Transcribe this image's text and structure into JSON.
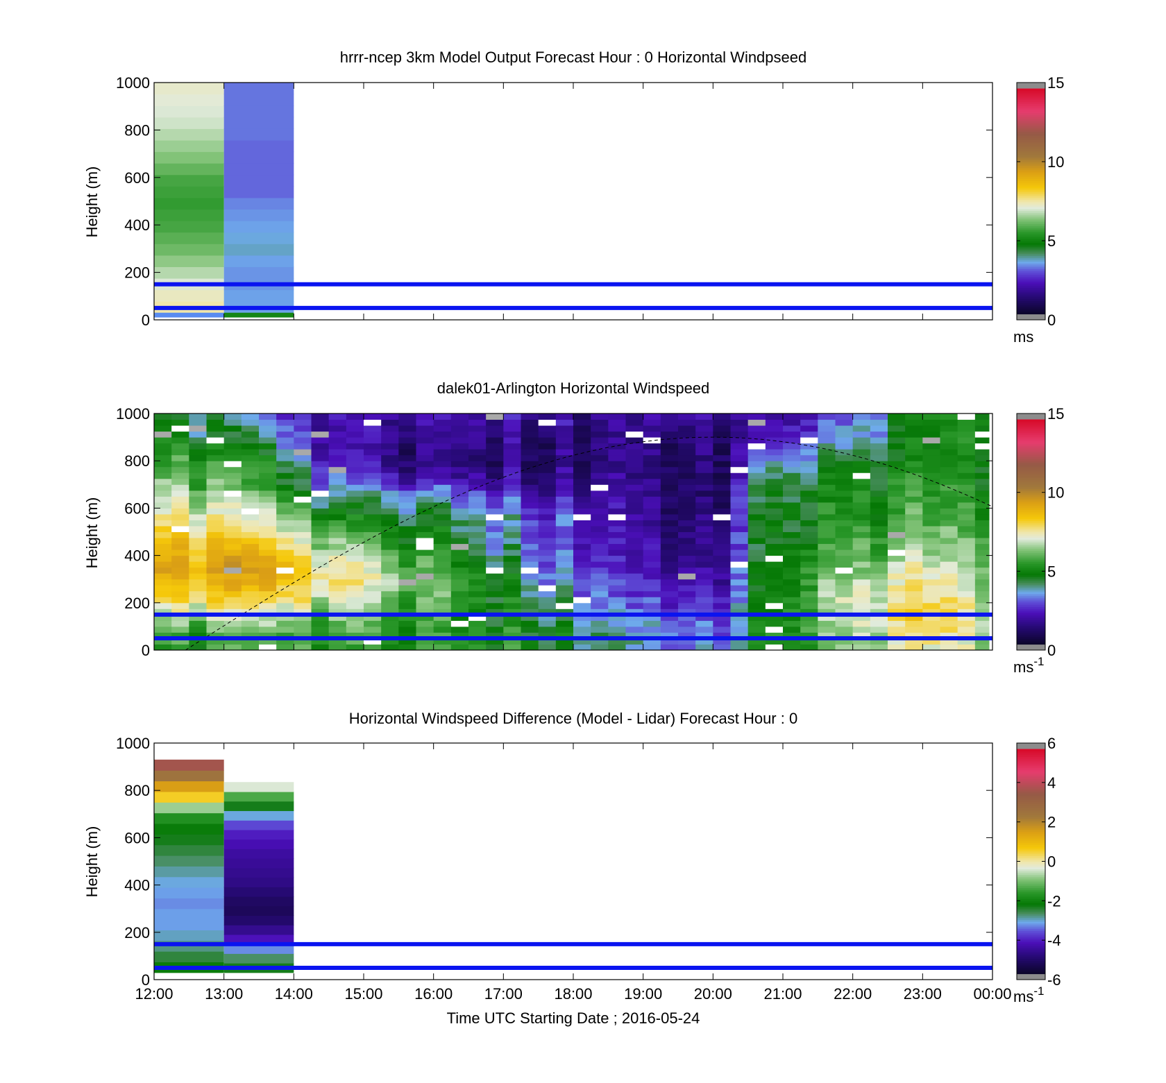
{
  "chart_data": [
    {
      "type": "heatmap",
      "title": "hrrr-ncep 3km Model Output   Forecast Hour : 0 Horizontal Windpseed",
      "ylabel": "Height (m)",
      "ylim": [
        0,
        1000
      ],
      "yticks": [
        "0",
        "200",
        "400",
        "600",
        "800",
        "1000"
      ],
      "xlim": [
        12,
        24
      ],
      "x_ticklabels_shown": false,
      "colorbar": {
        "range": [
          0,
          15
        ],
        "ticks": [
          "0",
          "5",
          "10",
          "15"
        ],
        "unit": "ms",
        "unit_sup": ""
      },
      "reference_heights_m": [
        150,
        50
      ],
      "columns": [
        {
          "x_start": 12,
          "x_end": 13,
          "height_range": [
            30,
            1000
          ],
          "values": [
            7.5,
            7.3,
            7.0,
            6.7,
            6.4,
            6.1,
            5.9,
            5.7,
            5.6,
            5.5,
            5.6,
            5.7,
            6.0,
            6.3,
            6.5,
            6.7,
            6.9,
            7.0,
            7.1,
            7.2
          ]
        },
        {
          "x_start": 13,
          "x_end": 14,
          "height_range": [
            30,
            1000
          ],
          "values": [
            3.4,
            3.4,
            3.3,
            3.3,
            3.4,
            3.6,
            3.5,
            3.4,
            3.3,
            3.2,
            3.0,
            3.0,
            3.0,
            3.0,
            3.0,
            3.1,
            3.1,
            3.1,
            3.1,
            3.1
          ]
        }
      ],
      "low_level_values": [
        5.0,
        5.0
      ]
    },
    {
      "type": "heatmap",
      "title": "dalek01-Arlington  Horizontal Windspeed",
      "ylabel": "Height (m)",
      "ylim": [
        0,
        1000
      ],
      "yticks": [
        "0",
        "200",
        "400",
        "600",
        "800",
        "1000"
      ],
      "xlim": [
        12,
        24
      ],
      "x_ticklabels_shown": false,
      "colorbar": {
        "range": [
          0,
          15
        ],
        "ticks": [
          "0",
          "5",
          "10",
          "15"
        ],
        "unit": "ms",
        "unit_sup": "-1"
      },
      "reference_heights_m": [
        150,
        50
      ],
      "data_end_hour": 23.95,
      "time_step_hours": 0.25,
      "height_levels_m": [
        0,
        1000
      ],
      "height_bin_m": 25,
      "profile_keyframes_ms": {
        "12.0": [
          5.0,
          5.2,
          6.3,
          7.6,
          8.5,
          9.3,
          8.7,
          8.0,
          7.3,
          6.9,
          6.2,
          5.6,
          5.0,
          4.8,
          4.5
        ],
        "13.5": [
          5.6,
          5.6,
          6.6,
          7.9,
          8.6,
          9.0,
          8.4,
          7.6,
          6.8,
          5.8,
          5.2,
          5.0,
          4.2,
          3.4,
          2.8
        ],
        "14.5": [
          5.2,
          5.4,
          6.0,
          6.8,
          7.6,
          7.4,
          6.4,
          5.6,
          4.6,
          3.7,
          2.8,
          2.2,
          1.8,
          1.6,
          1.6
        ],
        "16.0": [
          5.6,
          5.2,
          5.4,
          5.8,
          6.0,
          5.6,
          5.2,
          4.7,
          4.2,
          3.6,
          2.2,
          1.2,
          1.2,
          1.6,
          1.8
        ],
        "17.5": [
          5.0,
          4.8,
          4.6,
          4.4,
          4.0,
          3.4,
          3.1,
          3.0,
          3.0,
          2.2,
          1.6,
          1.2,
          1.4,
          1.6,
          2.0
        ],
        "18.5": [
          3.8,
          3.6,
          3.2,
          2.8,
          2.4,
          2.2,
          2.0,
          1.8,
          1.8,
          1.8,
          1.6,
          1.3,
          1.2,
          1.2,
          1.4
        ],
        "20.0": [
          3.0,
          2.8,
          2.4,
          2.0,
          1.6,
          1.2,
          1.0,
          1.0,
          0.8,
          0.6,
          0.6,
          0.8,
          1.0,
          1.2,
          1.4
        ],
        "20.75": [
          5.0,
          5.2,
          5.0,
          5.0,
          5.0,
          5.2,
          4.8,
          4.6,
          4.8,
          4.6,
          4.4,
          3.6,
          2.6,
          2.2,
          2.0
        ],
        "22.0": [
          6.2,
          6.6,
          6.8,
          7.0,
          6.6,
          6.0,
          5.8,
          5.4,
          5.2,
          5.0,
          4.8,
          4.4,
          3.8,
          3.2,
          2.8
        ],
        "23.0": [
          7.2,
          7.6,
          8.0,
          7.8,
          7.4,
          6.8,
          6.4,
          6.0,
          5.6,
          5.2,
          5.0,
          4.8,
          4.6,
          4.6,
          4.8
        ],
        "23.95": [
          6.4,
          6.6,
          6.8,
          6.6,
          6.4,
          6.0,
          5.8,
          5.4,
          5.2,
          5.0,
          4.8,
          4.8,
          5.0,
          5.0,
          5.2
        ]
      },
      "boundary_layer_curve": {
        "start": [
          12.45,
          0
        ],
        "peak": [
          20.0,
          900
        ],
        "end": [
          24.0,
          580
        ]
      }
    },
    {
      "type": "heatmap",
      "title": "Horizontal Windspeed Difference (Model - Lidar) Forecast Hour : 0",
      "ylabel": "Height (m)",
      "xlabel": "Time UTC  Starting Date ; 2016-05-24",
      "ylim": [
        0,
        1000
      ],
      "yticks": [
        "0",
        "200",
        "400",
        "600",
        "800",
        "1000"
      ],
      "xlim": [
        12,
        24
      ],
      "xticks": [
        "12:00",
        "13:00",
        "14:00",
        "15:00",
        "16:00",
        "17:00",
        "18:00",
        "19:00",
        "20:00",
        "21:00",
        "22:00",
        "23:00",
        "00:00"
      ],
      "colorbar": {
        "range": [
          -6,
          6
        ],
        "ticks": [
          "-6",
          "-4",
          "-2",
          "0",
          "2",
          "4",
          "6"
        ],
        "unit": "ms",
        "unit_sup": "-1"
      },
      "reference_heights_m": [
        150,
        50
      ],
      "columns": [
        {
          "x_start": 12,
          "x_end": 13,
          "height_range": [
            30,
            930
          ],
          "values": [
            -2.2,
            -2.6,
            -2.9,
            -3.1,
            -3.3,
            -3.3,
            -3.4,
            -3.3,
            -3.2,
            -3.0,
            -2.8,
            -2.6,
            -2.4,
            -2.2,
            -1.8,
            -0.8,
            0.6,
            1.6,
            2.6,
            3.8
          ]
        },
        {
          "x_start": 13,
          "x_end": 14,
          "height_range": [
            30,
            835
          ],
          "values": [
            -2.4,
            -2.8,
            -3.4,
            -4.3,
            -4.8,
            -5.2,
            -5.4,
            -5.3,
            -5.1,
            -4.9,
            -4.8,
            -4.7,
            -4.6,
            -4.4,
            -4.2,
            -3.8,
            -3.2,
            -2.4,
            -1.4,
            -0.4
          ]
        }
      ]
    }
  ]
}
